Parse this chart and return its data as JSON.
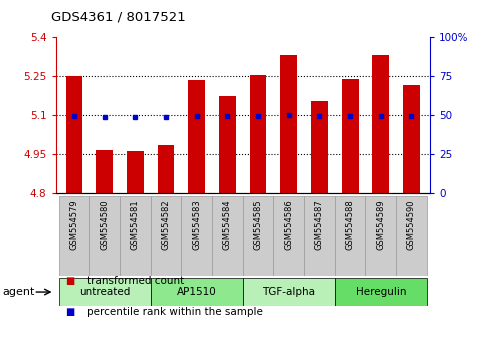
{
  "title": "GDS4361 / 8017521",
  "samples": [
    "GSM554579",
    "GSM554580",
    "GSM554581",
    "GSM554582",
    "GSM554583",
    "GSM554584",
    "GSM554585",
    "GSM554586",
    "GSM554587",
    "GSM554588",
    "GSM554589",
    "GSM554590"
  ],
  "red_values": [
    5.25,
    4.965,
    4.96,
    4.985,
    5.235,
    5.175,
    5.255,
    5.33,
    5.155,
    5.24,
    5.33,
    5.215
  ],
  "blue_values": [
    5.098,
    5.093,
    5.091,
    5.093,
    5.098,
    5.097,
    5.098,
    5.1,
    5.097,
    5.097,
    5.098,
    5.097
  ],
  "ymin": 4.8,
  "ymax": 5.4,
  "yticks": [
    4.8,
    4.95,
    5.1,
    5.25,
    5.4
  ],
  "ytick_labels": [
    "4.8",
    "4.95",
    "5.1",
    "5.25",
    "5.4"
  ],
  "right_yticks": [
    0,
    25,
    50,
    75,
    100
  ],
  "right_ytick_labels": [
    "0",
    "25",
    "50",
    "75",
    "100%"
  ],
  "gridlines": [
    4.95,
    5.1,
    5.25
  ],
  "groups": [
    {
      "label": "untreated",
      "start": 0,
      "end": 2,
      "color": "#b8f0b8"
    },
    {
      "label": "AP1510",
      "start": 3,
      "end": 5,
      "color": "#8ee88e"
    },
    {
      "label": "TGF-alpha",
      "start": 6,
      "end": 8,
      "color": "#b8f0b8"
    },
    {
      "label": "Heregulin",
      "start": 9,
      "end": 11,
      "color": "#66dd66"
    }
  ],
  "bar_color": "#cc0000",
  "dot_color": "#0000cc",
  "axis_left_color": "#cc0000",
  "axis_right_color": "#0000cc",
  "bar_width": 0.55,
  "base": 4.8,
  "col_bg_color": "#cccccc",
  "col_border_color": "#999999",
  "legend_items": [
    {
      "color": "#cc0000",
      "label": "transformed count"
    },
    {
      "color": "#0000cc",
      "label": "percentile rank within the sample"
    }
  ]
}
